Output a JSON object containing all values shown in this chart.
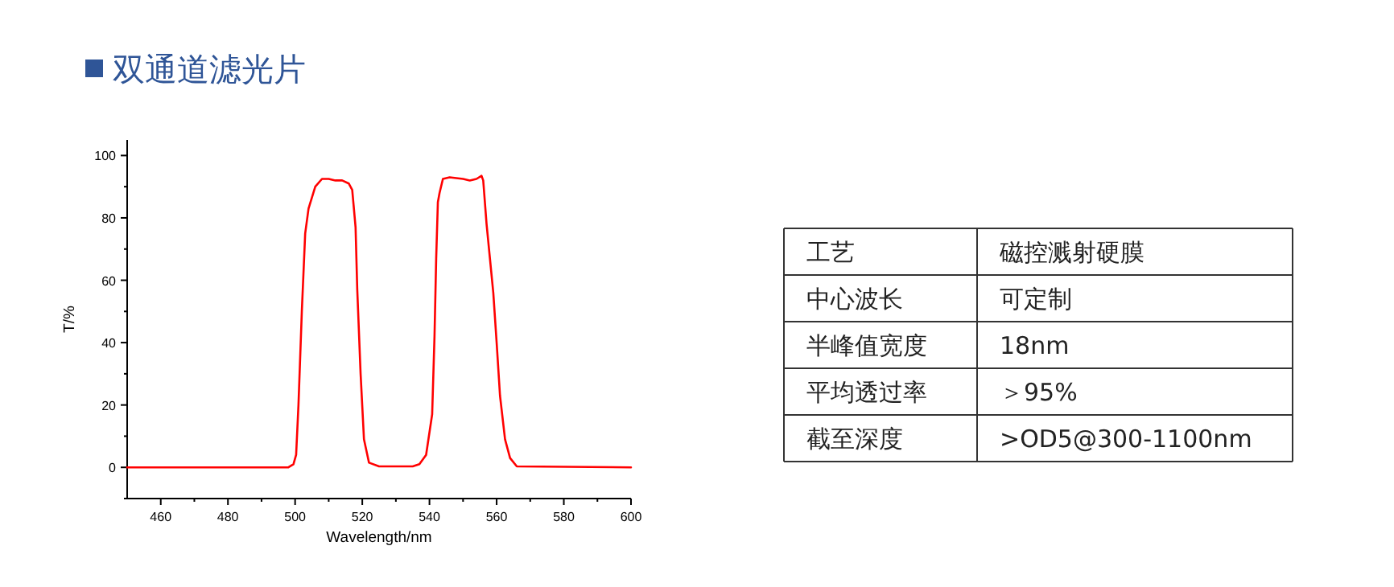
{
  "chart_data": [
    {
      "type": "line",
      "title": "双通道滤光片",
      "xlabel": "Wavelength/nm",
      "ylabel": "T/%",
      "xlim": [
        450,
        600
      ],
      "ylim": [
        -10,
        105
      ],
      "xticks": [
        460,
        {
          "value": 470,
          "label": null
        },
        480,
        {
          "value": 490,
          "label": null
        },
        500,
        {
          "value": 510,
          "label": null
        },
        520,
        {
          "value": 530,
          "label": null
        },
        540,
        {
          "value": 550,
          "label": null
        },
        560,
        {
          "value": 570,
          "label": null
        },
        580,
        {
          "value": 590,
          "label": null
        },
        600
      ],
      "yticks": [
        {
          "value": -10,
          "label": null
        },
        0,
        {
          "value": 10,
          "label": null
        },
        20,
        {
          "value": 30,
          "label": null
        },
        40,
        {
          "value": 50,
          "label": null
        },
        60,
        {
          "value": 70,
          "label": null
        },
        80,
        {
          "value": 90,
          "label": null
        },
        100
      ],
      "series": [
        {
          "color": "#ff0000",
          "x": [
            450,
            498,
            499.5,
            500.3,
            501,
            502,
            503,
            504,
            506,
            508,
            510,
            512,
            514,
            516,
            517,
            518,
            518.5,
            519.5,
            520.5,
            522,
            525,
            535,
            537,
            539,
            540.8,
            541.5,
            542,
            542.5,
            543,
            544,
            546,
            550,
            552,
            554,
            555.5,
            556,
            557,
            558,
            559,
            560,
            561,
            562.5,
            564,
            566,
            600
          ],
          "values": [
            0,
            0,
            1,
            4,
            20,
            50,
            75,
            83,
            90,
            92.5,
            92.5,
            92,
            92,
            91,
            89,
            77,
            57,
            30,
            9,
            1.5,
            0.3,
            0.3,
            1,
            4,
            17,
            42,
            67,
            85,
            88,
            92.5,
            93,
            92.5,
            92,
            92.5,
            93.5,
            92,
            78,
            67,
            56,
            40,
            23,
            9,
            3,
            0.3,
            0
          ]
        }
      ]
    },
    {
      "type": "other",
      "annotations": [
        "工艺",
        "磁控溅射硬膜",
        "中心波长",
        "可定制",
        "半峰值宽度",
        "18nm",
        "平均透过率",
        "＞95%",
        "截至深度",
        ">OD5@300-1100nm"
      ]
    }
  ]
}
